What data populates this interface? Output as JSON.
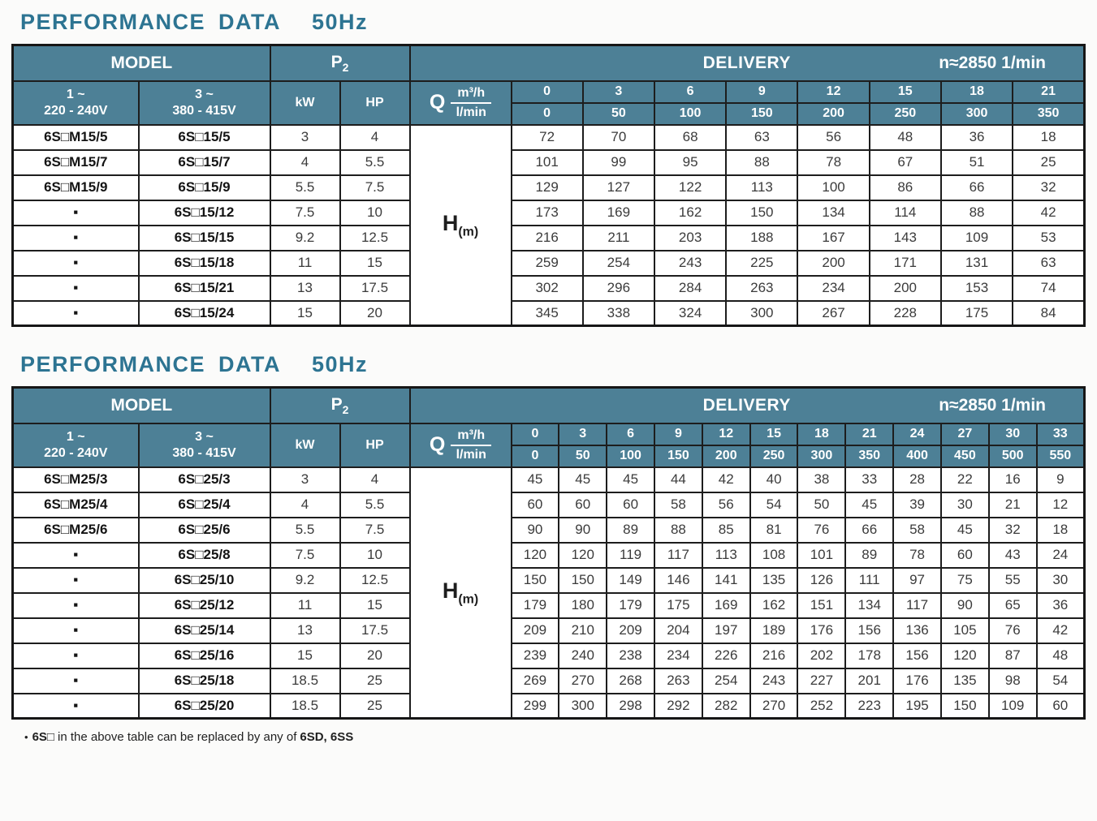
{
  "colors": {
    "header_bg": "#4d8096",
    "header_text": "#ffffff",
    "title_text": "#2d7492",
    "border": "#1d1d1d",
    "body_text": "#3b3b3b"
  },
  "footnote": {
    "bullet": "•",
    "model_code": "6S□",
    "text": "in the above table can be replaced by any of",
    "models": "6SD, 6SS"
  },
  "tables": [
    {
      "title": "PERFORMANCE DATA",
      "freq": "50Hz",
      "header": {
        "model": "MODEL",
        "p2_main": "P",
        "p2_sub": "2",
        "delivery": "DELIVERY",
        "speed": "n≈2850 1/min",
        "phase1": "1 ~",
        "volt1": "220 - 240V",
        "phase3": "3 ~",
        "volt3": "380 - 415V",
        "kw": "kW",
        "hp": "HP",
        "q": "Q",
        "unit_top": "m³/h",
        "unit_bottom": "l/min",
        "h_main": "H",
        "h_sub": "(m)"
      },
      "flow_m3h": [
        "0",
        "3",
        "6",
        "9",
        "12",
        "15",
        "18",
        "21"
      ],
      "flow_lmin": [
        "0",
        "50",
        "100",
        "150",
        "200",
        "250",
        "300",
        "350"
      ],
      "rows": [
        {
          "model_1ph": "6S□M15/5",
          "model_3ph": "6S□15/5",
          "kw": "3",
          "hp": "4",
          "head": [
            "72",
            "70",
            "68",
            "63",
            "56",
            "48",
            "36",
            "18"
          ]
        },
        {
          "model_1ph": "6S□M15/7",
          "model_3ph": "6S□15/7",
          "kw": "4",
          "hp": "5.5",
          "head": [
            "101",
            "99",
            "95",
            "88",
            "78",
            "67",
            "51",
            "25"
          ]
        },
        {
          "model_1ph": "6S□M15/9",
          "model_3ph": "6S□15/9",
          "kw": "5.5",
          "hp": "7.5",
          "head": [
            "129",
            "127",
            "122",
            "113",
            "100",
            "86",
            "66",
            "32"
          ]
        },
        {
          "model_1ph": "▪",
          "model_3ph": "6S□15/12",
          "kw": "7.5",
          "hp": "10",
          "head": [
            "173",
            "169",
            "162",
            "150",
            "134",
            "114",
            "88",
            "42"
          ]
        },
        {
          "model_1ph": "▪",
          "model_3ph": "6S□15/15",
          "kw": "9.2",
          "hp": "12.5",
          "head": [
            "216",
            "211",
            "203",
            "188",
            "167",
            "143",
            "109",
            "53"
          ]
        },
        {
          "model_1ph": "▪",
          "model_3ph": "6S□15/18",
          "kw": "11",
          "hp": "15",
          "head": [
            "259",
            "254",
            "243",
            "225",
            "200",
            "171",
            "131",
            "63"
          ]
        },
        {
          "model_1ph": "▪",
          "model_3ph": "6S□15/21",
          "kw": "13",
          "hp": "17.5",
          "head": [
            "302",
            "296",
            "284",
            "263",
            "234",
            "200",
            "153",
            "74"
          ]
        },
        {
          "model_1ph": "▪",
          "model_3ph": "6S□15/24",
          "kw": "15",
          "hp": "20",
          "head": [
            "345",
            "338",
            "324",
            "300",
            "267",
            "228",
            "175",
            "84"
          ]
        }
      ]
    },
    {
      "title": "PERFORMANCE DATA",
      "freq": "50Hz",
      "header": {
        "model": "MODEL",
        "p2_main": "P",
        "p2_sub": "2",
        "delivery": "DELIVERY",
        "speed": "n≈2850 1/min",
        "phase1": "1 ~",
        "volt1": "220 - 240V",
        "phase3": "3 ~",
        "volt3": "380 - 415V",
        "kw": "kW",
        "hp": "HP",
        "q": "Q",
        "unit_top": "m³/h",
        "unit_bottom": "l/min",
        "h_main": "H",
        "h_sub": "(m)"
      },
      "flow_m3h": [
        "0",
        "3",
        "6",
        "9",
        "12",
        "15",
        "18",
        "21",
        "24",
        "27",
        "30",
        "33"
      ],
      "flow_lmin": [
        "0",
        "50",
        "100",
        "150",
        "200",
        "250",
        "300",
        "350",
        "400",
        "450",
        "500",
        "550"
      ],
      "rows": [
        {
          "model_1ph": "6S□M25/3",
          "model_3ph": "6S□25/3",
          "kw": "3",
          "hp": "4",
          "head": [
            "45",
            "45",
            "45",
            "44",
            "42",
            "40",
            "38",
            "33",
            "28",
            "22",
            "16",
            "9"
          ]
        },
        {
          "model_1ph": "6S□M25/4",
          "model_3ph": "6S□25/4",
          "kw": "4",
          "hp": "5.5",
          "head": [
            "60",
            "60",
            "60",
            "58",
            "56",
            "54",
            "50",
            "45",
            "39",
            "30",
            "21",
            "12"
          ]
        },
        {
          "model_1ph": "6S□M25/6",
          "model_3ph": "6S□25/6",
          "kw": "5.5",
          "hp": "7.5",
          "head": [
            "90",
            "90",
            "89",
            "88",
            "85",
            "81",
            "76",
            "66",
            "58",
            "45",
            "32",
            "18"
          ]
        },
        {
          "model_1ph": "▪",
          "model_3ph": "6S□25/8",
          "kw": "7.5",
          "hp": "10",
          "head": [
            "120",
            "120",
            "119",
            "117",
            "113",
            "108",
            "101",
            "89",
            "78",
            "60",
            "43",
            "24"
          ]
        },
        {
          "model_1ph": "▪",
          "model_3ph": "6S□25/10",
          "kw": "9.2",
          "hp": "12.5",
          "head": [
            "150",
            "150",
            "149",
            "146",
            "141",
            "135",
            "126",
            "111",
            "97",
            "75",
            "55",
            "30"
          ]
        },
        {
          "model_1ph": "▪",
          "model_3ph": "6S□25/12",
          "kw": "11",
          "hp": "15",
          "head": [
            "179",
            "180",
            "179",
            "175",
            "169",
            "162",
            "151",
            "134",
            "117",
            "90",
            "65",
            "36"
          ]
        },
        {
          "model_1ph": "▪",
          "model_3ph": "6S□25/14",
          "kw": "13",
          "hp": "17.5",
          "head": [
            "209",
            "210",
            "209",
            "204",
            "197",
            "189",
            "176",
            "156",
            "136",
            "105",
            "76",
            "42"
          ]
        },
        {
          "model_1ph": "▪",
          "model_3ph": "6S□25/16",
          "kw": "15",
          "hp": "20",
          "head": [
            "239",
            "240",
            "238",
            "234",
            "226",
            "216",
            "202",
            "178",
            "156",
            "120",
            "87",
            "48"
          ]
        },
        {
          "model_1ph": "▪",
          "model_3ph": "6S□25/18",
          "kw": "18.5",
          "hp": "25",
          "head": [
            "269",
            "270",
            "268",
            "263",
            "254",
            "243",
            "227",
            "201",
            "176",
            "135",
            "98",
            "54"
          ]
        },
        {
          "model_1ph": "▪",
          "model_3ph": "6S□25/20",
          "kw": "18.5",
          "hp": "25",
          "head": [
            "299",
            "300",
            "298",
            "292",
            "282",
            "270",
            "252",
            "223",
            "195",
            "150",
            "109",
            "60"
          ]
        }
      ]
    }
  ]
}
